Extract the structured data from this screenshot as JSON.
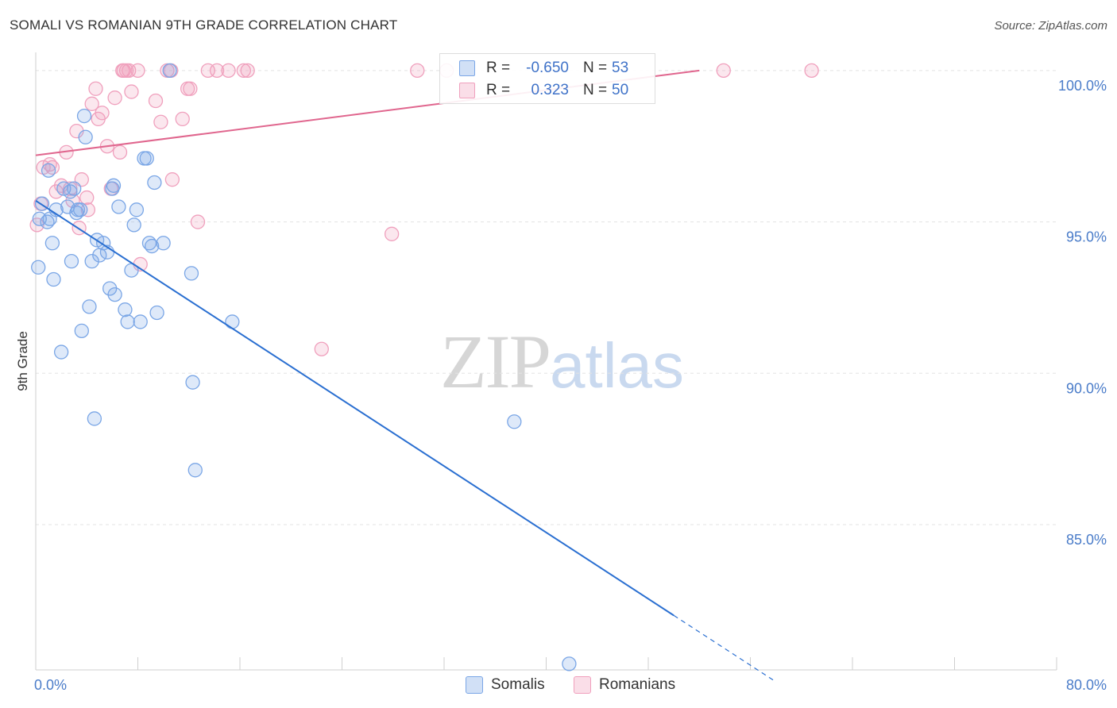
{
  "title": "SOMALI VS ROMANIAN 9TH GRADE CORRELATION CHART",
  "source": "Source: ZipAtlas.com",
  "watermark": {
    "zip": "ZIP",
    "atlas": "atlas"
  },
  "colors": {
    "somali": "#7aa6e6",
    "somali_fill": "rgba(122,166,230,0.25)",
    "somali_line": "#2a6fd1",
    "romanian": "#f0a0bd",
    "romanian_fill": "rgba(240,160,189,0.25)",
    "romanian_line": "#e0668e",
    "axis_text": "#4a7cc9"
  },
  "legend": {
    "somali": {
      "r_label": "R =",
      "r_value": "-0.650",
      "n_label": "N =",
      "n_value": "53"
    },
    "romanian": {
      "r_label": "R =",
      "r_value": "0.323",
      "n_label": "N =",
      "n_value": "50"
    }
  },
  "bottom_legend": {
    "somali": "Somalis",
    "romanian": "Romanians"
  },
  "chart_data": {
    "type": "scatter",
    "title": "SOMALI VS ROMANIAN 9TH GRADE CORRELATION CHART",
    "xlabel": "",
    "ylabel": "9th Grade",
    "xlim": [
      0,
      80
    ],
    "ylim": [
      80.2,
      100.6
    ],
    "x_tick_labels": [
      "0.0%",
      "80.0%"
    ],
    "y_ticks": [
      {
        "value": 85,
        "label": "85.0%"
      },
      {
        "value": 90,
        "label": "90.0%"
      },
      {
        "value": 95,
        "label": "95.0%"
      },
      {
        "value": 100,
        "label": "100.0%"
      }
    ],
    "series": [
      {
        "name": "Somalis",
        "R": -0.65,
        "N": 53,
        "trend": {
          "x0": 0,
          "y0": 95.7,
          "x1": 50,
          "y1": 82.0,
          "dash_to_x": 58
        },
        "points": [
          [
            0.2,
            93.5
          ],
          [
            0.3,
            95.1
          ],
          [
            0.5,
            95.6
          ],
          [
            0.9,
            95.0
          ],
          [
            1.0,
            96.7
          ],
          [
            1.3,
            94.3
          ],
          [
            1.4,
            93.1
          ],
          [
            1.6,
            95.4
          ],
          [
            2.0,
            90.7
          ],
          [
            2.2,
            96.1
          ],
          [
            2.5,
            95.5
          ],
          [
            2.8,
            93.7
          ],
          [
            3.0,
            96.1
          ],
          [
            3.2,
            95.3
          ],
          [
            3.3,
            95.4
          ],
          [
            3.6,
            91.4
          ],
          [
            3.8,
            98.5
          ],
          [
            3.9,
            97.8
          ],
          [
            4.2,
            92.2
          ],
          [
            4.4,
            93.7
          ],
          [
            4.6,
            88.5
          ],
          [
            4.8,
            94.4
          ],
          [
            5.0,
            93.9
          ],
          [
            5.3,
            94.3
          ],
          [
            5.6,
            94.0
          ],
          [
            5.8,
            92.8
          ],
          [
            6.0,
            96.1
          ],
          [
            6.2,
            92.6
          ],
          [
            6.5,
            95.5
          ],
          [
            7.0,
            92.1
          ],
          [
            7.2,
            91.7
          ],
          [
            7.5,
            93.4
          ],
          [
            7.7,
            94.9
          ],
          [
            7.9,
            95.4
          ],
          [
            8.2,
            91.7
          ],
          [
            8.5,
            97.1
          ],
          [
            8.7,
            97.1
          ],
          [
            8.9,
            94.3
          ],
          [
            9.1,
            94.2
          ],
          [
            9.3,
            96.3
          ],
          [
            9.5,
            92.0
          ],
          [
            10.0,
            94.3
          ],
          [
            10.5,
            100.0
          ],
          [
            12.2,
            93.3
          ],
          [
            12.3,
            89.7
          ],
          [
            12.5,
            86.8
          ],
          [
            15.4,
            91.7
          ],
          [
            37.5,
            88.4
          ],
          [
            41.8,
            80.4
          ],
          [
            1.1,
            95.1
          ],
          [
            2.7,
            96.0
          ],
          [
            6.1,
            96.2
          ],
          [
            3.5,
            95.4
          ]
        ]
      },
      {
        "name": "Romanians",
        "R": 0.323,
        "N": 50,
        "trend": {
          "x0": 0,
          "y0": 97.2,
          "x1": 52,
          "y1": 100.0
        },
        "points": [
          [
            0.1,
            94.9
          ],
          [
            0.4,
            95.6
          ],
          [
            0.6,
            96.8
          ],
          [
            1.1,
            96.9
          ],
          [
            1.3,
            96.8
          ],
          [
            1.6,
            96.0
          ],
          [
            2.0,
            96.2
          ],
          [
            2.4,
            97.3
          ],
          [
            2.7,
            96.1
          ],
          [
            2.9,
            95.7
          ],
          [
            3.2,
            98.0
          ],
          [
            3.4,
            94.8
          ],
          [
            3.6,
            96.4
          ],
          [
            4.0,
            95.8
          ],
          [
            4.1,
            95.4
          ],
          [
            4.4,
            98.9
          ],
          [
            4.7,
            99.4
          ],
          [
            4.9,
            98.4
          ],
          [
            5.2,
            98.6
          ],
          [
            5.6,
            97.5
          ],
          [
            5.9,
            96.1
          ],
          [
            6.2,
            99.1
          ],
          [
            6.6,
            97.3
          ],
          [
            6.9,
            100.0
          ],
          [
            7.1,
            100.0
          ],
          [
            7.3,
            100.0
          ],
          [
            7.5,
            99.3
          ],
          [
            8.0,
            100.0
          ],
          [
            8.2,
            93.6
          ],
          [
            9.4,
            99.0
          ],
          [
            9.8,
            98.3
          ],
          [
            10.3,
            100.0
          ],
          [
            10.6,
            100.0
          ],
          [
            10.7,
            96.4
          ],
          [
            11.5,
            98.4
          ],
          [
            11.9,
            99.4
          ],
          [
            12.1,
            99.4
          ],
          [
            12.7,
            95.0
          ],
          [
            13.5,
            100.0
          ],
          [
            14.2,
            100.0
          ],
          [
            15.1,
            100.0
          ],
          [
            16.3,
            100.0
          ],
          [
            16.6,
            100.0
          ],
          [
            22.4,
            90.8
          ],
          [
            27.9,
            94.6
          ],
          [
            29.9,
            100.0
          ],
          [
            32.2,
            100.0
          ],
          [
            53.9,
            100.0
          ],
          [
            60.8,
            100.0
          ],
          [
            6.8,
            100.0
          ]
        ]
      }
    ]
  }
}
